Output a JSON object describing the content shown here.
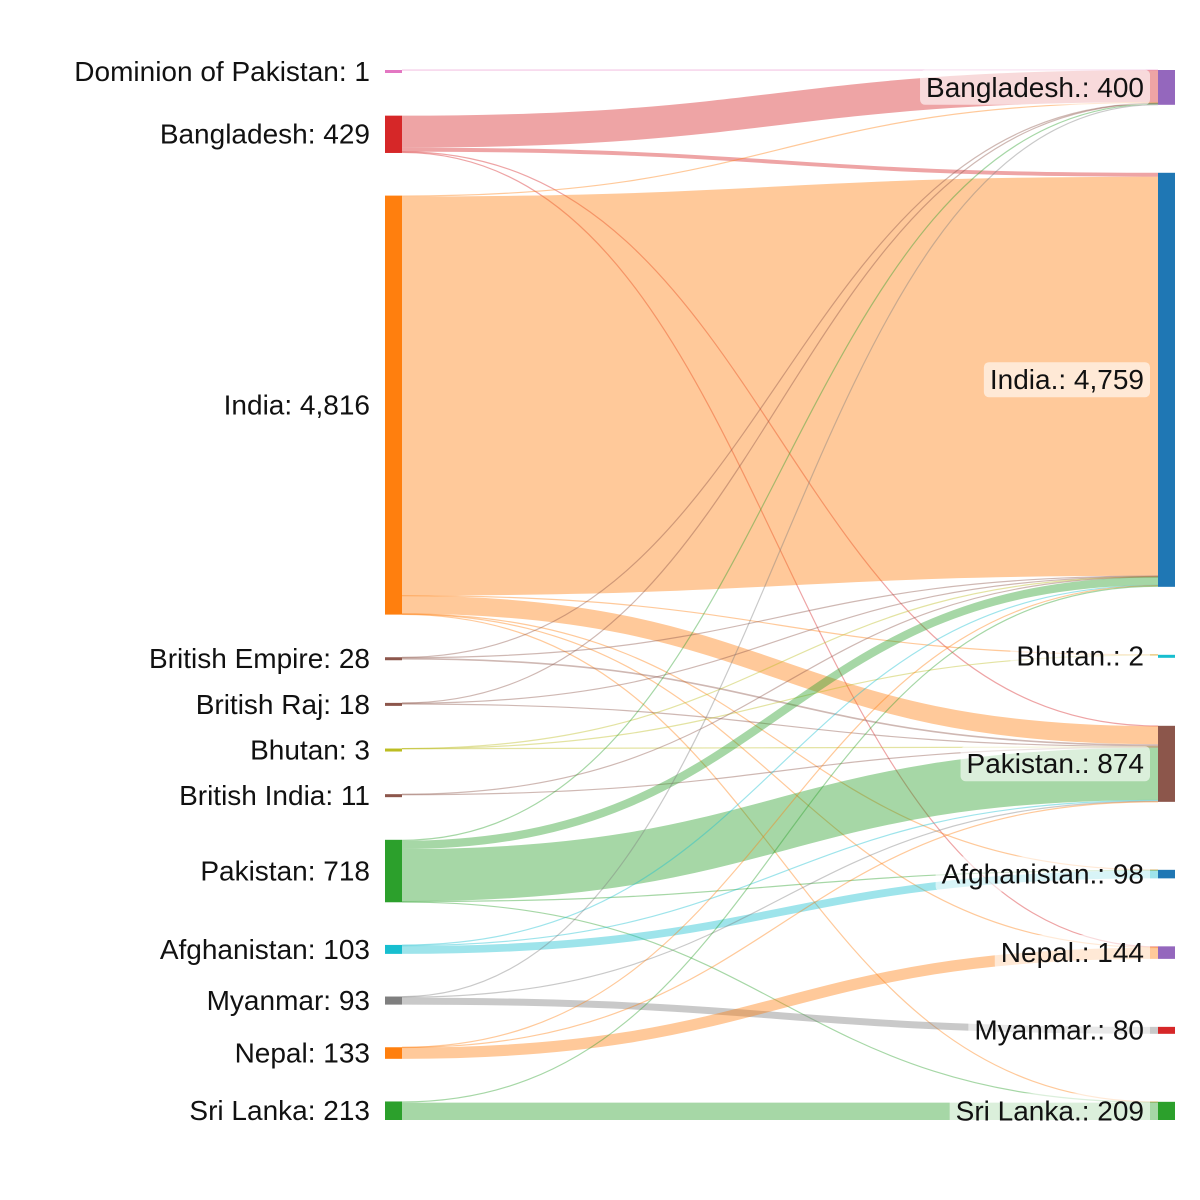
{
  "chart_data": {
    "type": "sankey",
    "sources": [
      {
        "label": "Dominion of Pakistan: 1",
        "value": 1,
        "color": "#e377c2"
      },
      {
        "label": "Bangladesh: 429",
        "value": 429,
        "color": "#d62728"
      },
      {
        "label": "India: 4,816",
        "value": 4816,
        "color": "#ff7f0e"
      },
      {
        "label": "British Empire: 28",
        "value": 28,
        "color": "#8c564b"
      },
      {
        "label": "British Raj: 18",
        "value": 18,
        "color": "#8c564b"
      },
      {
        "label": "Bhutan: 3",
        "value": 3,
        "color": "#bcbd22"
      },
      {
        "label": "British India: 11",
        "value": 11,
        "color": "#8c564b"
      },
      {
        "label": "Pakistan: 718",
        "value": 718,
        "color": "#2ca02c"
      },
      {
        "label": "Afghanistan: 103",
        "value": 103,
        "color": "#17becf"
      },
      {
        "label": "Myanmar: 93",
        "value": 93,
        "color": "#7f7f7f"
      },
      {
        "label": "Nepal: 133",
        "value": 133,
        "color": "#ff7f0e"
      },
      {
        "label": "Sri Lanka: 213",
        "value": 213,
        "color": "#2ca02c"
      }
    ],
    "targets": [
      {
        "label": "Bangladesh.: 400",
        "value": 400,
        "color": "#9467bd"
      },
      {
        "label": "India.: 4,759",
        "value": 4759,
        "color": "#1f77b4"
      },
      {
        "label": "Bhutan.: 2",
        "value": 2,
        "color": "#17becf"
      },
      {
        "label": "Pakistan.: 874",
        "value": 874,
        "color": "#8c564b"
      },
      {
        "label": "Afghanistan.: 98",
        "value": 98,
        "color": "#1f77b4"
      },
      {
        "label": "Nepal.: 144",
        "value": 144,
        "color": "#9467bd"
      },
      {
        "label": "Myanmar.: 80",
        "value": 80,
        "color": "#d62728"
      },
      {
        "label": "Sri Lanka.: 209",
        "value": 209,
        "color": "#2ca02c"
      }
    ],
    "links": [
      {
        "source": 0,
        "target": 0,
        "value": 1
      },
      {
        "source": 1,
        "target": 0,
        "value": 368
      },
      {
        "source": 1,
        "target": 1,
        "value": 45
      },
      {
        "source": 1,
        "target": 3,
        "value": 4
      },
      {
        "source": 1,
        "target": 5,
        "value": 12
      },
      {
        "source": 2,
        "target": 0,
        "value": 10
      },
      {
        "source": 2,
        "target": 1,
        "value": 4587
      },
      {
        "source": 2,
        "target": 2,
        "value": 1
      },
      {
        "source": 2,
        "target": 3,
        "value": 208
      },
      {
        "source": 2,
        "target": 4,
        "value": 3
      },
      {
        "source": 2,
        "target": 5,
        "value": 3
      },
      {
        "source": 2,
        "target": 7,
        "value": 4
      },
      {
        "source": 3,
        "target": 0,
        "value": 3
      },
      {
        "source": 3,
        "target": 1,
        "value": 6
      },
      {
        "source": 3,
        "target": 3,
        "value": 19
      },
      {
        "source": 4,
        "target": 0,
        "value": 3
      },
      {
        "source": 4,
        "target": 1,
        "value": 5
      },
      {
        "source": 4,
        "target": 3,
        "value": 10
      },
      {
        "source": 5,
        "target": 1,
        "value": 1
      },
      {
        "source": 5,
        "target": 2,
        "value": 1
      },
      {
        "source": 5,
        "target": 3,
        "value": 1
      },
      {
        "source": 6,
        "target": 1,
        "value": 2
      },
      {
        "source": 6,
        "target": 3,
        "value": 9
      },
      {
        "source": 7,
        "target": 0,
        "value": 11
      },
      {
        "source": 7,
        "target": 1,
        "value": 95
      },
      {
        "source": 7,
        "target": 3,
        "value": 602
      },
      {
        "source": 7,
        "target": 4,
        "value": 5
      },
      {
        "source": 7,
        "target": 7,
        "value": 5
      },
      {
        "source": 8,
        "target": 1,
        "value": 3
      },
      {
        "source": 8,
        "target": 3,
        "value": 10
      },
      {
        "source": 8,
        "target": 4,
        "value": 90
      },
      {
        "source": 9,
        "target": 0,
        "value": 4
      },
      {
        "source": 9,
        "target": 3,
        "value": 9
      },
      {
        "source": 9,
        "target": 6,
        "value": 80
      },
      {
        "source": 10,
        "target": 1,
        "value": 2
      },
      {
        "source": 10,
        "target": 3,
        "value": 2
      },
      {
        "source": 10,
        "target": 5,
        "value": 129
      },
      {
        "source": 11,
        "target": 1,
        "value": 13
      },
      {
        "source": 11,
        "target": 7,
        "value": 200
      }
    ]
  }
}
